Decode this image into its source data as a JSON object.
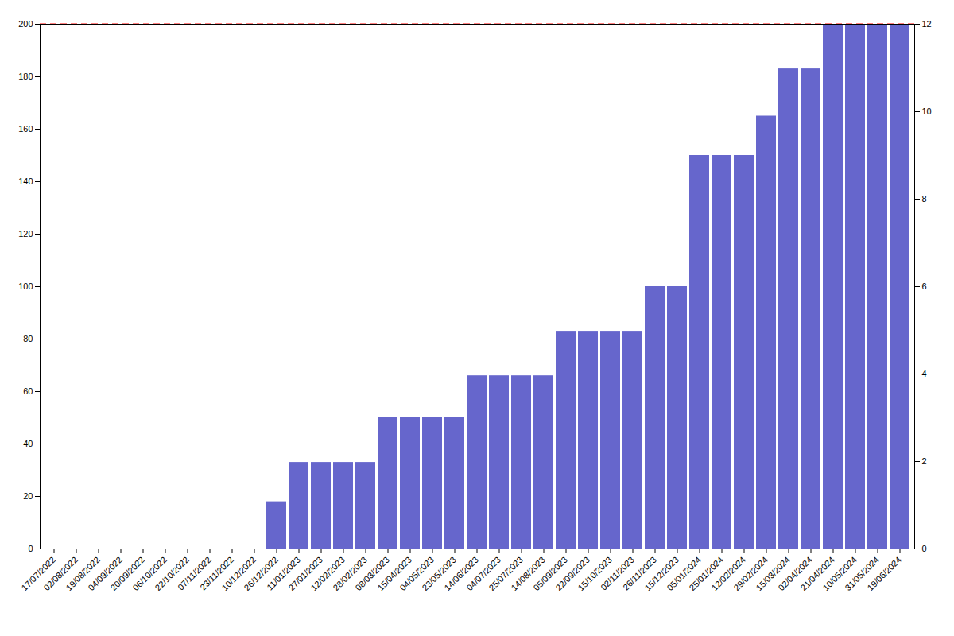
{
  "chart_data": {
    "type": "bar",
    "categories": [
      "17/07/2022",
      "02/08/2022",
      "19/08/2022",
      "04/09/2022",
      "20/09/2022",
      "06/10/2022",
      "22/10/2022",
      "07/11/2022",
      "23/11/2022",
      "10/12/2022",
      "26/12/2022",
      "11/01/2023",
      "27/01/2023",
      "12/02/2023",
      "28/02/2023",
      "08/03/2023",
      "15/04/2023",
      "04/05/2023",
      "23/05/2023",
      "14/06/2023",
      "04/07/2023",
      "25/07/2023",
      "14/08/2023",
      "05/09/2023",
      "22/09/2023",
      "15/10/2023",
      "02/11/2023",
      "26/11/2023",
      "15/12/2023",
      "05/01/2024",
      "25/01/2024",
      "12/02/2024",
      "29/02/2024",
      "15/03/2024",
      "02/04/2024",
      "21/04/2024",
      "10/05/2024",
      "31/05/2024",
      "19/06/2024"
    ],
    "values": [
      0,
      0,
      0,
      0,
      0,
      0,
      0,
      0,
      0,
      0,
      18,
      33,
      33,
      33,
      33,
      50,
      50,
      50,
      50,
      66,
      66,
      66,
      66,
      83,
      83,
      83,
      83,
      100,
      100,
      150,
      150,
      150,
      165,
      183,
      183,
      200,
      200,
      200,
      200
    ],
    "color": "#6666cc",
    "ylim": [
      0,
      200
    ],
    "yticks": [
      0,
      20,
      40,
      60,
      80,
      100,
      120,
      140,
      160,
      180,
      200
    ],
    "y2lim": [
      0,
      12
    ],
    "y2ticks": [
      0,
      2,
      4,
      6,
      8,
      10,
      12
    ],
    "reference_line": {
      "value": 200,
      "color": "#ff0000",
      "line_style": "dashed"
    },
    "grid": false
  }
}
